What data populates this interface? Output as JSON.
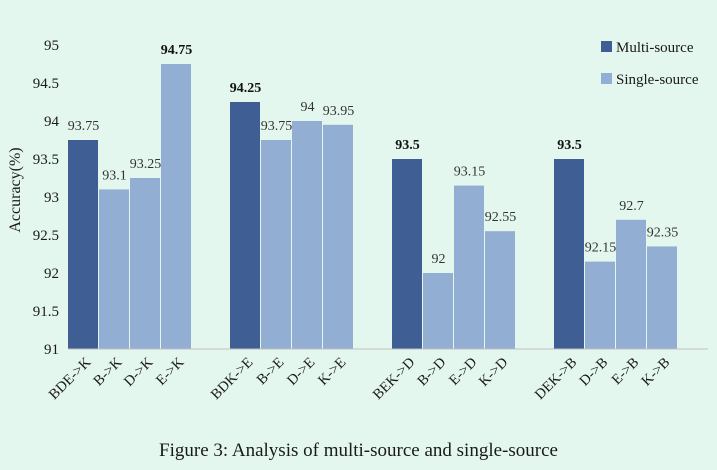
{
  "caption": "Figure 3: Analysis of multi-source and single-source",
  "chart_data": {
    "type": "bar",
    "ylabel": "Accuracy(%)",
    "xlabel": "",
    "ylim": [
      91,
      95
    ],
    "yticks": [
      "91",
      "91.5",
      "92",
      "92.5",
      "93",
      "93.5",
      "94",
      "94.5",
      "95"
    ],
    "grid": false,
    "legend_position": "top-right",
    "legend": [
      {
        "name": "Multi-source",
        "color": "#3f5f94"
      },
      {
        "name": "Single-source",
        "color": "#92aed3"
      }
    ],
    "groups": [
      {
        "bars": [
          {
            "label": "BDE->K",
            "value": 93.75,
            "value_label": "93.75",
            "series": "Multi-source"
          },
          {
            "label": "B->K",
            "value": 93.1,
            "value_label": "93.1",
            "series": "Single-source"
          },
          {
            "label": "D->K",
            "value": 93.25,
            "value_label": "93.25",
            "series": "Single-source"
          },
          {
            "label": "E->K",
            "value": 94.75,
            "value_label": "94.75",
            "series": "Single-source",
            "bold": true
          }
        ]
      },
      {
        "bars": [
          {
            "label": "BDK->E",
            "value": 94.25,
            "value_label": "94.25",
            "series": "Multi-source",
            "bold": true
          },
          {
            "label": "B->E",
            "value": 93.75,
            "value_label": "93.75",
            "series": "Single-source"
          },
          {
            "label": "D->E",
            "value": 94,
            "value_label": "94",
            "series": "Single-source"
          },
          {
            "label": "K->E",
            "value": 93.95,
            "value_label": "93.95",
            "series": "Single-source"
          }
        ]
      },
      {
        "bars": [
          {
            "label": "BEK->D",
            "value": 93.5,
            "value_label": "93.5",
            "series": "Multi-source",
            "bold": true
          },
          {
            "label": "B->D",
            "value": 92,
            "value_label": "92",
            "series": "Single-source"
          },
          {
            "label": "E->D",
            "value": 93.15,
            "value_label": "93.15",
            "series": "Single-source"
          },
          {
            "label": "K->D",
            "value": 92.55,
            "value_label": "92.55",
            "series": "Single-source"
          }
        ]
      },
      {
        "bars": [
          {
            "label": "DEK->B",
            "value": 93.5,
            "value_label": "93.5",
            "series": "Multi-source",
            "bold": true
          },
          {
            "label": "D->B",
            "value": 92.15,
            "value_label": "92.15",
            "series": "Single-source"
          },
          {
            "label": "E->B",
            "value": 92.7,
            "value_label": "92.7",
            "series": "Single-source"
          },
          {
            "label": "K->B",
            "value": 92.35,
            "value_label": "92.35",
            "series": "Single-source"
          }
        ]
      }
    ]
  }
}
